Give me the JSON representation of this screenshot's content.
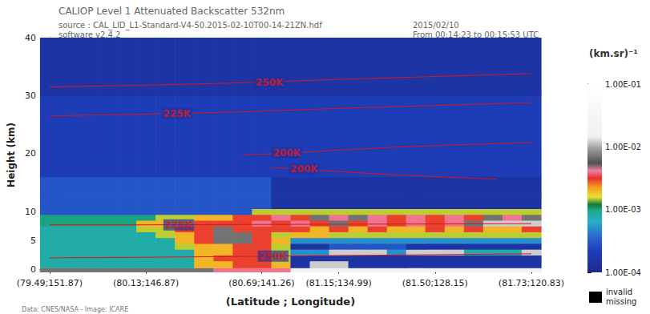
{
  "chart_data": {
    "type": "heatmap",
    "title": "CALIOP Level 1 Attenuated Backscatter 532nm",
    "subtitle": [
      "source : CAL_LID_L1-Standard-V4-50.2015-02-10T00-14-21ZN.hdf",
      "software v2.4.2"
    ],
    "date": [
      "2015/02/10",
      "From 00:14:23 to 00:15:53 UTC"
    ],
    "credit": "Data: CNES/NASA - Image: ICARE",
    "xlabel": "(Latitude ; Longitude)",
    "ylabel": "Height (km)",
    "xlim": [
      -0.5,
      25.5
    ],
    "xticks": [
      {
        "value": 0,
        "label": "(79.49;151.87)"
      },
      {
        "value": 5,
        "label": "(80.13;146.87)"
      },
      {
        "value": 11,
        "label": "(80.69;141.26)"
      },
      {
        "value": 15,
        "label": "(81.15;134.99)"
      },
      {
        "value": 20,
        "label": "(81.50;128.15)"
      },
      {
        "value": 25,
        "label": "(81.73;120.83)"
      }
    ],
    "ylim": [
      -0.5,
      40
    ],
    "yticks": [
      0,
      5,
      10,
      20,
      30,
      40
    ],
    "columns": [
      0,
      1,
      2,
      3,
      4,
      5,
      6,
      7,
      8,
      9,
      10,
      11,
      12,
      13,
      14,
      15,
      16,
      17,
      18,
      19,
      20,
      21,
      22,
      23,
      24,
      25
    ],
    "heights": [
      -0.5,
      0.3,
      1.5,
      2.5,
      3.5,
      4.5,
      5.5,
      6.5,
      7.5,
      8.5,
      9.5,
      10.5,
      13,
      16,
      20,
      30,
      40
    ],
    "cells": [
      [
        0.007,
        0.007,
        0.007,
        0.007,
        0.007,
        0.007,
        0.007,
        0.007,
        0.007,
        0.004,
        0.004,
        0.004,
        0.004,
        0.02,
        0.02,
        0.02,
        0.02,
        0.02,
        0.02,
        0.02,
        0.02,
        0.02,
        0.02,
        0.02,
        0.02,
        0.02
      ],
      [
        0.0008,
        0.0008,
        0.0008,
        0.0008,
        0.0008,
        0.0008,
        0.0008,
        0.0008,
        0.002,
        0.002,
        0.003,
        0.003,
        0.002,
        0.00015,
        0.012,
        0.012,
        0.00015,
        0.00015,
        0.00015,
        0.00015,
        0.00015,
        0.00015,
        0.00015,
        0.00015,
        0.00015,
        0.00015
      ],
      [
        0.0008,
        0.0008,
        0.0008,
        0.0008,
        0.0008,
        0.0008,
        0.0008,
        0.0008,
        0.002,
        0.003,
        0.003,
        0.003,
        0.0015,
        0.00015,
        0.00015,
        0.00015,
        0.00015,
        0.00015,
        0.00015,
        0.00015,
        0.00015,
        0.00015,
        0.00015,
        0.00015,
        0.00015,
        0.00015
      ],
      [
        0.0008,
        0.0008,
        0.0008,
        0.0008,
        0.0008,
        0.0008,
        0.0008,
        0.0008,
        0.002,
        0.002,
        0.003,
        0.003,
        0.0015,
        0.0005,
        0.0005,
        0.012,
        0.012,
        0.012,
        0.0005,
        0.012,
        0.012,
        0.012,
        0.0008,
        0.0008,
        0.0008,
        0.012
      ],
      [
        0.0008,
        0.0008,
        0.0008,
        0.0008,
        0.0008,
        0.0008,
        0.0008,
        0.0015,
        0.002,
        0.002,
        0.003,
        0.003,
        0.0015,
        0.00015,
        0.00015,
        0.0003,
        0.0003,
        0.0003,
        0.0003,
        0.00015,
        0.00015,
        0.00015,
        0.00015,
        0.00015,
        0.00015,
        0.00015
      ],
      [
        0.0008,
        0.0008,
        0.0008,
        0.0008,
        0.0008,
        0.0008,
        0.0008,
        0.002,
        0.003,
        0.007,
        0.007,
        0.003,
        0.002,
        0.0005,
        0.0005,
        0.0005,
        0.0005,
        0.0005,
        0.0005,
        0.0005,
        0.0005,
        0.0005,
        0.0005,
        0.0005,
        0.0005,
        0.0005
      ],
      [
        0.0008,
        0.0008,
        0.0008,
        0.0008,
        0.0008,
        0.0008,
        0.0015,
        0.002,
        0.003,
        0.007,
        0.007,
        0.003,
        0.0015,
        0.002,
        0.002,
        0.0015,
        0.0015,
        0.0015,
        0.0015,
        0.0015,
        0.0015,
        0.0015,
        0.0015,
        0.0015,
        0.0015,
        0.0015
      ],
      [
        0.0008,
        0.0008,
        0.0008,
        0.0008,
        0.0008,
        0.0015,
        0.0015,
        0.003,
        0.003,
        0.007,
        0.003,
        0.003,
        0.003,
        0.003,
        0.002,
        0.003,
        0.002,
        0.003,
        0.002,
        0.002,
        0.003,
        0.002,
        0.003,
        0.002,
        0.002,
        0.003
      ],
      [
        0.001,
        0.001,
        0.001,
        0.001,
        0.001,
        0.002,
        0.002,
        0.002,
        0.003,
        0.003,
        0.003,
        0.004,
        0.003,
        0.004,
        0.003,
        0.007,
        0.003,
        0.004,
        0.003,
        0.004,
        0.003,
        0.004,
        0.007,
        0.012,
        0.012,
        0.012
      ],
      [
        0.001,
        0.001,
        0.001,
        0.001,
        0.001,
        0.001,
        0.0015,
        0.0015,
        0.002,
        0.002,
        0.003,
        0.003,
        0.004,
        0.003,
        0.007,
        0.004,
        0.007,
        0.004,
        0.003,
        0.004,
        0.003,
        0.004,
        0.003,
        0.007,
        0.004,
        0.007
      ],
      [
        0.0003,
        0.0003,
        0.0003,
        0.0003,
        0.0003,
        0.0003,
        0.0003,
        0.0003,
        0.0003,
        0.0003,
        0.0003,
        0.0015,
        0.0015,
        0.0015,
        0.0015,
        0.0015,
        0.0015,
        0.0015,
        0.0015,
        0.0015,
        0.0015,
        0.0015,
        0.0015,
        0.0015,
        0.0015,
        0.0015
      ],
      [
        0.0003,
        0.0003,
        0.0003,
        0.0003,
        0.0003,
        0.0003,
        0.0003,
        0.0003,
        0.0003,
        0.0003,
        0.0003,
        0.0003,
        0.00015,
        0.00015,
        0.00015,
        0.00015,
        0.00015,
        0.00015,
        0.00015,
        0.00015,
        0.00015,
        0.00015,
        0.00015,
        0.00015,
        0.00015,
        0.00015
      ],
      [
        0.0003,
        0.0003,
        0.0003,
        0.0003,
        0.0003,
        0.0003,
        0.0003,
        0.0003,
        0.0003,
        0.0003,
        0.0003,
        0.0003,
        0.00015,
        0.00015,
        0.00015,
        0.00015,
        0.00015,
        0.00015,
        0.00015,
        0.00015,
        0.00015,
        0.00015,
        0.00015,
        0.00015,
        0.00015,
        0.00015
      ],
      [
        0.0002,
        0.0002,
        0.0002,
        0.0002,
        0.0002,
        0.0002,
        0.0002,
        0.0002,
        0.0002,
        0.0002,
        0.0002,
        0.0002,
        0.0002,
        0.0002,
        0.0002,
        0.0002,
        0.0002,
        0.0002,
        0.0002,
        0.0002,
        0.0002,
        0.0002,
        0.0002,
        0.0002,
        0.0002,
        0.0002
      ],
      [
        0.0002,
        0.0002,
        0.0002,
        0.0002,
        0.0002,
        0.0002,
        0.0002,
        0.0002,
        0.0002,
        0.0002,
        0.0002,
        0.0002,
        0.0002,
        0.0002,
        0.0002,
        0.0002,
        0.0002,
        0.0002,
        0.0002,
        0.0002,
        0.0002,
        0.0002,
        0.0002,
        0.0002,
        0.0002,
        0.0002
      ],
      [
        0.00015,
        0.00015,
        0.00015,
        0.00015,
        0.00015,
        0.00015,
        0.00015,
        0.00015,
        0.00015,
        0.00015,
        0.00015,
        0.00015,
        0.00015,
        0.00015,
        0.00015,
        0.00015,
        0.00015,
        0.00015,
        0.00015,
        0.00015,
        0.00015,
        0.00015,
        0.00015,
        0.00015,
        0.00015,
        0.00015
      ]
    ],
    "colorbar": {
      "title": "(km.sr)⁻¹",
      "range": [
        0.0001,
        0.1
      ],
      "ticks": [
        {
          "value": 0.1,
          "label": "1.00E-01"
        },
        {
          "value": 0.01,
          "label": "1.00E-02"
        },
        {
          "value": 0.001,
          "label": "1.00E-03"
        },
        {
          "value": 0.0001,
          "label": "1.00E-04"
        }
      ]
    },
    "nodata_labels": [
      "invalid",
      "missing"
    ],
    "contours": [
      {
        "label": "250K",
        "x": [
          0,
          5,
          10,
          15,
          20,
          25
        ],
        "y": [
          31.5,
          31.8,
          32.2,
          32.8,
          33.3,
          33.8
        ],
        "label_at": [
          11.4,
          32.3
        ]
      },
      {
        "label": "225K",
        "x": [
          0,
          5,
          10,
          15,
          20,
          25
        ],
        "y": [
          26.5,
          26.8,
          27.2,
          27.8,
          28.3,
          28.8
        ],
        "label_at": [
          6.6,
          26.9
        ]
      },
      {
        "label": "200K",
        "x": [
          10,
          12,
          15,
          18,
          21,
          25
        ],
        "y": [
          19.8,
          20,
          20.6,
          21.1,
          21.5,
          21.9
        ],
        "label_at": [
          12.3,
          20.1
        ]
      },
      {
        "label": "200K",
        "x": [
          11.5,
          14,
          17,
          20,
          23.2
        ],
        "y": [
          17.6,
          17.1,
          16.5,
          16.0,
          15.6
        ],
        "label_at": [
          13.2,
          17.3
        ]
      },
      {
        "label": "225K",
        "x": [
          0,
          5,
          10,
          15,
          20,
          25
        ],
        "y": [
          7.7,
          7.7,
          7.75,
          7.8,
          7.85,
          7.9
        ],
        "label_at": [
          6.7,
          7.7
        ]
      },
      {
        "label": "250K",
        "x": [
          0,
          5,
          10,
          15,
          20,
          25
        ],
        "y": [
          2.0,
          2.1,
          2.25,
          2.4,
          2.55,
          2.7
        ],
        "label_at": [
          11.6,
          2.3
        ]
      }
    ]
  }
}
